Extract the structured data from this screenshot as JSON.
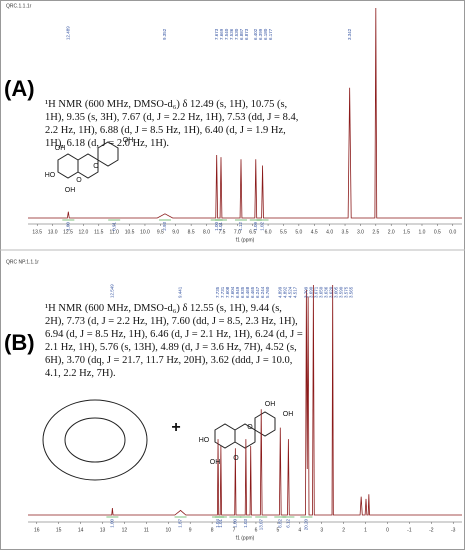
{
  "chart_data": [
    {
      "type": "line",
      "panel_label": "(A)",
      "title": "QRC.1.1.1r",
      "color": "#8b1a1a",
      "description": "¹H NMR (600 MHz, DMSO-d₆) δ 12.49 (s, 1H), 10.75 (s, 1H), 9.35 (s, 3H), 7.67 (d, J = 2.2 Hz, 1H), 7.53 (dd, J = 8.4, 2.2 Hz, 1H), 6.88 (d, J = 8.5 Hz, 1H), 6.40 (d, J = 1.9 Hz, 1H), 6.18 (d, J = 2.0 Hz, 1H).",
      "structure_labels": [
        "OH",
        "OH",
        "HO",
        "OH",
        "O",
        "O"
      ],
      "peak_labels": [
        "12.489",
        "9.352",
        "7.673",
        "7.669",
        "7.540",
        "7.536",
        "7.530",
        "6.887",
        "6.873",
        "6.402",
        "6.399",
        "6.180",
        "6.177",
        "3.342"
      ],
      "integrals": [
        "1.00",
        "0.91",
        "2.93",
        "1.00",
        "1.01",
        "1.12",
        "1.09",
        "1.02"
      ],
      "xlabel": "f1 (ppm)",
      "x": [
        13.8,
        12.52,
        12.49,
        12.46,
        9.6,
        9.35,
        9.1,
        7.7,
        7.67,
        7.64,
        7.56,
        7.53,
        7.5,
        6.91,
        6.88,
        6.85,
        6.43,
        6.4,
        6.37,
        6.21,
        6.18,
        6.15,
        3.4,
        3.35,
        3.3,
        2.53,
        2.5,
        2.47,
        -0.3
      ],
      "values": [
        0,
        0,
        3,
        0,
        0,
        2,
        0,
        0,
        30,
        0,
        0,
        29,
        0,
        0,
        28,
        0,
        0,
        28,
        0,
        0,
        25,
        0,
        0,
        62,
        0,
        0,
        100,
        0,
        0
      ],
      "xlim": [
        13.8,
        -0.3
      ],
      "ylim": [
        0,
        100
      ],
      "xticks": [
        13.5,
        {
          "value": 13,
          "label": "13.0"
        },
        12.5,
        {
          "value": 12,
          "label": "12.0"
        },
        11.5,
        {
          "value": 11,
          "label": "11.0"
        },
        10.5,
        {
          "value": 10,
          "label": "10.0"
        },
        9.5,
        {
          "value": 9,
          "label": "9.0"
        },
        8.5,
        {
          "value": 8,
          "label": "8.0"
        },
        7.5,
        {
          "value": 7,
          "label": "7.0"
        },
        6.5,
        {
          "value": 6,
          "label": "6.0"
        },
        5.5,
        {
          "value": 5,
          "label": "5.0"
        },
        4.5,
        {
          "value": 4,
          "label": "4.0"
        },
        3.5,
        {
          "value": 3,
          "label": "3.0"
        },
        2.5,
        {
          "value": 2,
          "label": "2.0"
        },
        1.5,
        {
          "value": 1,
          "label": "1.0"
        },
        0.5,
        {
          "value": 0,
          "label": "0.0"
        }
      ]
    },
    {
      "type": "line",
      "panel_label": "(B)",
      "title": "QRC NP.1.1.1r",
      "color": "#8b1a1a",
      "description": "¹H NMR (600 MHz, DMSO-d₆) δ 12.55 (s, 1H), 9.44 (s, 2H), 7.73 (d, J = 2.2 Hz, 1H), 7.60 (dd, J = 8.5, 2.3 Hz, 1H), 6.94 (d, J = 8.5 Hz, 1H), 6.46 (d, J = 2.1 Hz, 1H), 6.24 (d, J = 2.1 Hz, 1H), 5.76 (s, 13H), 4.89 (d, J = 3.6 Hz, 7H), 4.52 (s, 6H), 3.70 (dq, J = 21.7, 11.7 Hz, 20H), 3.62 (ddd, J = 10.0, 4.1, 2.2 Hz, 7H).",
      "structure_labels": [
        "+",
        "OH",
        "OH",
        "HO",
        "OH",
        "O",
        "O"
      ],
      "peak_labels": [
        "12.549",
        "9.441",
        "7.735",
        "7.731",
        "7.608",
        "7.604",
        "6.949",
        "6.935",
        "6.468",
        "6.465",
        "6.247",
        "6.244",
        "5.760",
        "4.899",
        "4.892",
        "4.524",
        "4.517",
        "3.709",
        "3.690",
        "3.671",
        "3.650",
        "3.636",
        "3.620",
        "3.605",
        "3.590",
        "3.575",
        "3.565"
      ],
      "integrals": [
        "1.00",
        "1.87",
        "1.04",
        "1.01",
        "1.00",
        "1.03",
        "13.07",
        "6.82",
        "6.12",
        "20.20"
      ],
      "xlabel": "f1 (ppm)",
      "x": [
        16.4,
        12.58,
        12.55,
        12.52,
        9.7,
        9.44,
        9.2,
        7.76,
        7.73,
        7.7,
        7.63,
        7.6,
        7.57,
        6.97,
        6.94,
        6.91,
        6.49,
        6.46,
        6.43,
        6.27,
        6.24,
        6.21,
        5.8,
        5.76,
        5.72,
        4.93,
        4.89,
        4.85,
        4.56,
        4.52,
        4.48,
        3.74,
        3.7,
        3.66,
        3.62,
        3.58,
        3.42,
        3.38,
        3.34,
        2.53,
        2.5,
        2.47,
        1.25,
        1.2,
        1.15,
        1.02,
        0.98,
        0.94,
        0.88,
        0.85,
        0.82,
        -3.4
      ],
      "values": [
        0,
        0,
        3,
        0,
        0,
        2,
        0,
        0,
        33,
        0,
        0,
        30,
        0,
        0,
        29,
        0,
        0,
        33,
        0,
        0,
        30,
        0,
        0,
        46,
        0,
        0,
        38,
        0,
        0,
        33,
        0,
        0,
        98,
        20,
        95,
        0,
        0,
        100,
        0,
        0,
        100,
        0,
        0,
        8,
        0,
        0,
        7,
        0,
        0,
        9,
        0,
        0
      ],
      "xlim": [
        16.4,
        -3.4
      ],
      "ylim": [
        0,
        100
      ],
      "xticks": [
        16,
        15,
        14,
        13,
        12,
        11,
        10,
        9,
        8,
        7,
        6,
        5,
        4,
        3,
        2,
        1,
        0,
        -1,
        -2,
        -3
      ]
    }
  ]
}
